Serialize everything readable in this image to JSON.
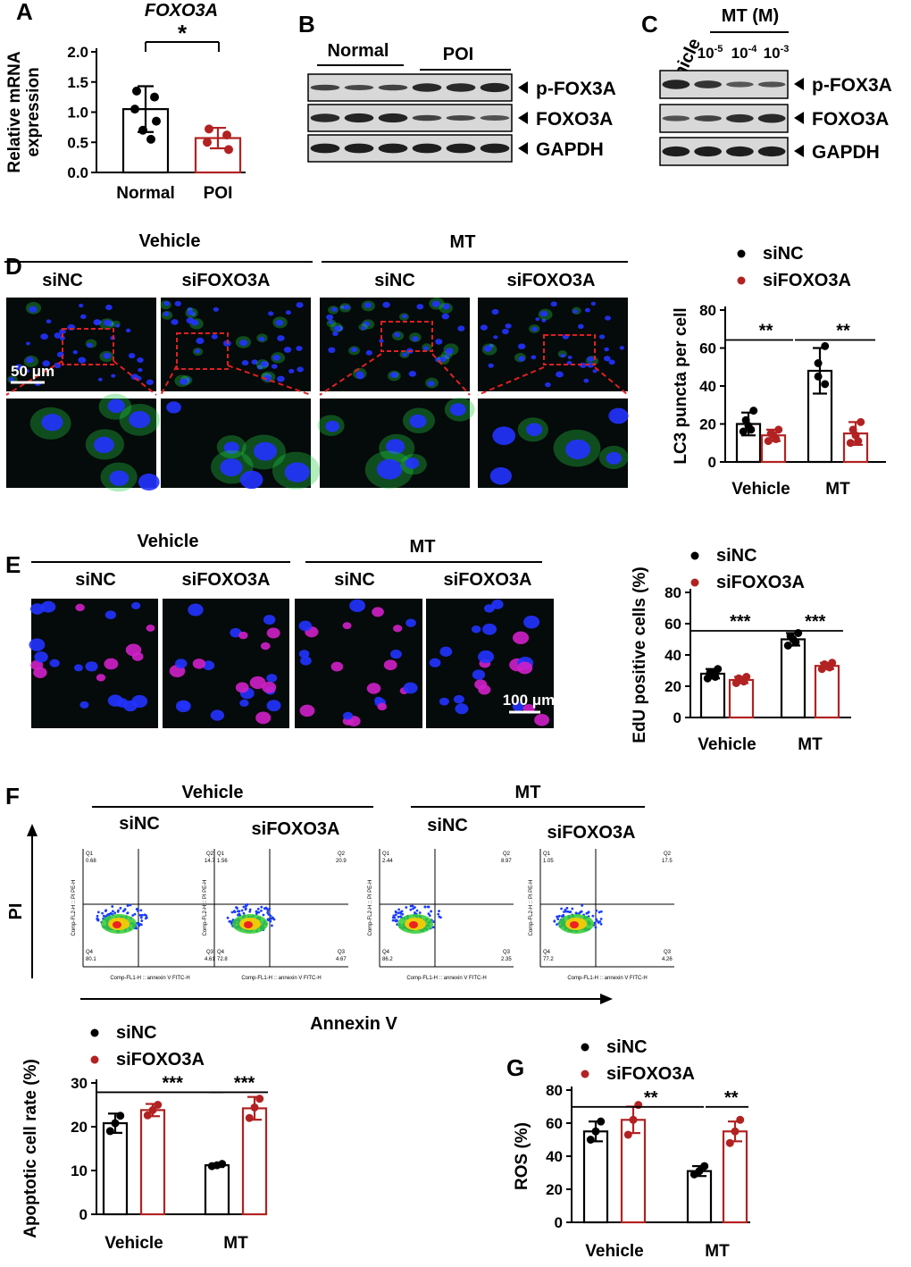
{
  "colors": {
    "black": "#000000",
    "red": "#b22222",
    "micro_bg": "#050a0a",
    "nucleus": "#2233ff",
    "lc3": "#22cc44",
    "edu": "#d020c8",
    "dash_red": "#e02020"
  },
  "panels": {
    "A": {
      "letter": "A",
      "title": "FOXO3A",
      "sig": "*",
      "ylabel": "Relative mRNA expression",
      "ylabel_lines": [
        "Relative mRNA",
        "expression"
      ],
      "chart_data": {
        "type": "bar",
        "categories": [
          "Normal",
          "POI"
        ],
        "values": [
          1.05,
          0.57
        ],
        "errors": [
          0.38,
          0.17
        ],
        "points": [
          [
            1.35,
            1.25,
            1.05,
            0.85,
            0.7,
            0.55
          ],
          [
            0.72,
            0.62,
            0.5,
            0.38
          ]
        ],
        "yticks": [
          "0.0",
          "0.5",
          "1.0",
          "1.5",
          "2.0"
        ],
        "ylim": [
          0,
          2.0
        ]
      }
    },
    "B": {
      "letter": "B",
      "groups": [
        "Normal",
        "POI"
      ],
      "bands": [
        "p-FOX3A",
        "FOXO3A",
        "GAPDH"
      ]
    },
    "C": {
      "letter": "C",
      "lanes": [
        "Vehicle"
      ],
      "group": "MT (M)",
      "doses": [
        {
          "base": "10",
          "exp": "-5"
        },
        {
          "base": "10",
          "exp": "-4"
        },
        {
          "base": "10",
          "exp": "-3"
        }
      ],
      "bands": [
        "p-FOX3A",
        "FOXO3A",
        "GAPDH"
      ]
    },
    "D": {
      "letter": "D",
      "groups": [
        "Vehicle",
        "MT"
      ],
      "subgroups": [
        "siNC",
        "siFOXO3A",
        "siNC",
        "siFOXO3A"
      ],
      "scale": "50 μm",
      "legend": [
        "siNC",
        "siFOXO3A"
      ],
      "sig": [
        "**",
        "**"
      ],
      "chart_data": {
        "type": "bar",
        "ylabel": "LC3 puncta per cell",
        "categories": [
          "Vehicle",
          "MT"
        ],
        "yticks": [
          "0",
          "20",
          "40",
          "60",
          "80"
        ],
        "ylim": [
          0,
          80
        ],
        "series": [
          {
            "name": "siNC",
            "values": [
              20,
              48
            ],
            "errors": [
              6,
              12
            ],
            "points": [
              [
                27,
                22,
                19,
                17,
                16
              ],
              [
                61,
                52,
                45,
                41
              ]
            ]
          },
          {
            "name": "siFOXO3A",
            "values": [
              14,
              15
            ],
            "errors": [
              3,
              6
            ],
            "points": [
              [
                17,
                15,
                14,
                12,
                11
              ],
              [
                21,
                17,
                14,
                11,
                10
              ]
            ]
          }
        ]
      }
    },
    "E": {
      "letter": "E",
      "groups": [
        "Vehicle",
        "MT"
      ],
      "subgroups": [
        "siNC",
        "siFOXO3A",
        "siNC",
        "siFOXO3A"
      ],
      "scale": "100 μm",
      "legend": [
        "siNC",
        "siFOXO3A"
      ],
      "sig": [
        "***",
        "***"
      ],
      "chart_data": {
        "type": "bar",
        "ylabel": "EdU positive cells (%)",
        "categories": [
          "Vehicle",
          "MT"
        ],
        "yticks": [
          "0",
          "20",
          "40",
          "60",
          "80"
        ],
        "ylim": [
          0,
          80
        ],
        "series": [
          {
            "name": "siNC",
            "values": [
              28,
              50
            ],
            "errors": [
              3,
              4
            ],
            "points": [
              [
                31,
                29,
                28,
                26,
                25
              ],
              [
                54,
                52,
                50,
                48,
                46
              ]
            ]
          },
          {
            "name": "siFOXO3A",
            "values": [
              24,
              33
            ],
            "errors": [
              2,
              2
            ],
            "points": [
              [
                26,
                25,
                24,
                23,
                22
              ],
              [
                35,
                34,
                33,
                32,
                31
              ]
            ]
          }
        ]
      }
    },
    "F": {
      "letter": "F",
      "groups": [
        "Vehicle",
        "MT"
      ],
      "subgroups": [
        "siNC",
        "siFOXO3A",
        "siNC",
        "siFOXO3A"
      ],
      "yaxis": "PI",
      "xaxis": "Annexin V",
      "flow": [
        {
          "q1": "0.68",
          "q2": "14.7",
          "q3": "4.61",
          "q4": "80.1"
        },
        {
          "q1": "1.56",
          "q2": "20.9",
          "q3": "4.67",
          "q4": "72.8"
        },
        {
          "q1": "2.44",
          "q2": "8.97",
          "q3": "2.35",
          "q4": "86.2"
        },
        {
          "q1": "1.05",
          "q2": "17.5",
          "q3": "4.26",
          "q4": "77.2"
        }
      ],
      "qlabels": [
        "Q1",
        "Q2",
        "Q3",
        "Q4"
      ],
      "flow_ylabel": "Comp-FL2-H :: PI PE-H",
      "flow_xlabel": "Comp-FL1-H :: annexin V FITC-H",
      "legend": [
        "siNC",
        "siFOXO3A"
      ],
      "sig": [
        "***",
        "***"
      ],
      "chart_data": {
        "type": "bar",
        "ylabel": "Apoptotic cell rate (%)",
        "categories": [
          "Vehicle",
          "MT"
        ],
        "yticks": [
          "0",
          "10",
          "20",
          "30"
        ],
        "ylim": [
          0,
          30
        ],
        "series": [
          {
            "name": "siNC",
            "values": [
              20.8,
              11.2
            ],
            "errors": [
              2.2,
              0.4
            ],
            "points": [
              [
                22.5,
                20.8,
                19.0
              ],
              [
                11.5,
                11.2,
                11.0
              ]
            ]
          },
          {
            "name": "siFOXO3A",
            "values": [
              23.8,
              24.2
            ],
            "errors": [
              1.4,
              2.6
            ],
            "points": [
              [
                25.0,
                23.8,
                22.6
              ],
              [
                26.4,
                24.4,
                22.0
              ]
            ]
          }
        ]
      }
    },
    "G": {
      "letter": "G",
      "legend": [
        "siNC",
        "siFOXO3A"
      ],
      "sig": [
        "**",
        "**"
      ],
      "chart_data": {
        "type": "bar",
        "ylabel": "ROS (%)",
        "categories": [
          "Vehicle",
          "MT"
        ],
        "yticks": [
          "0",
          "20",
          "40",
          "60",
          "80"
        ],
        "ylim": [
          0,
          80
        ],
        "series": [
          {
            "name": "siNC",
            "values": [
              55,
              31
            ],
            "errors": [
              6,
              3
            ],
            "points": [
              [
                61,
                55,
                50
              ],
              [
                34,
                31,
                29
              ]
            ]
          },
          {
            "name": "siFOXO3A",
            "values": [
              62,
              55
            ],
            "errors": [
              8,
              6
            ],
            "points": [
              [
                71,
                62,
                53
              ],
              [
                62,
                55,
                48
              ]
            ]
          }
        ]
      }
    }
  }
}
